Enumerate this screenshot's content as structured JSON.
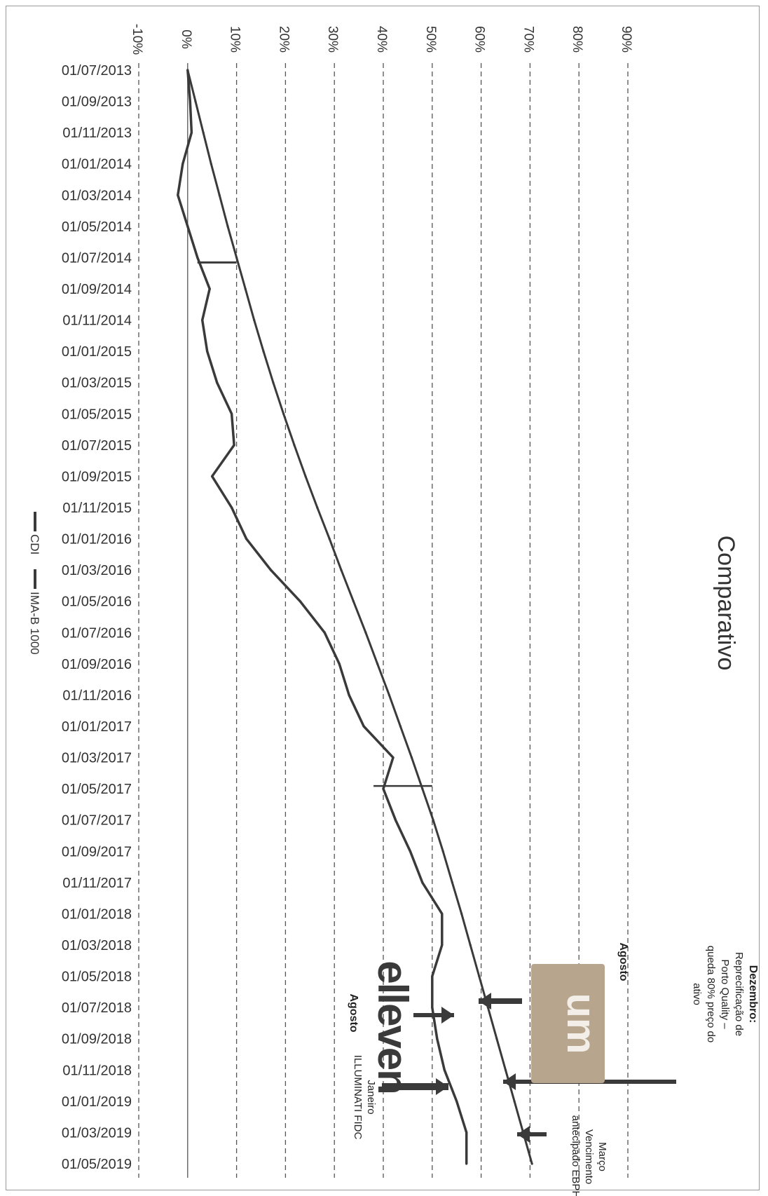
{
  "chart_data": {
    "type": "line",
    "title": "Comparativo",
    "orientation": "rotated-90-clockwise",
    "y_axis": {
      "ticks": [
        "-10%",
        "0%",
        "10%",
        "20%",
        "30%",
        "40%",
        "50%",
        "60%",
        "70%",
        "80%",
        "90%"
      ],
      "tick_values": [
        -10,
        0,
        10,
        20,
        30,
        40,
        50,
        60,
        70,
        80,
        90
      ],
      "ylim": [
        -10,
        90
      ],
      "grid": true
    },
    "x_axis": {
      "ticks": [
        "01/07/2013",
        "01/09/2013",
        "01/11/2013",
        "01/01/2014",
        "01/03/2014",
        "01/05/2014",
        "01/07/2014",
        "01/09/2014",
        "01/11/2014",
        "01/01/2015",
        "01/03/2015",
        "01/05/2015",
        "01/07/2015",
        "01/09/2015",
        "01/11/2015",
        "01/01/2016",
        "01/03/2016",
        "01/05/2016",
        "01/07/2016",
        "01/09/2016",
        "01/11/2016",
        "01/01/2017",
        "01/03/2017",
        "01/05/2017",
        "01/07/2017",
        "01/09/2017",
        "01/11/2017",
        "01/01/2018",
        "01/03/2018",
        "01/05/2018",
        "01/07/2018",
        "01/09/2018",
        "01/11/2018",
        "01/01/2019",
        "01/03/2019",
        "01/05/2019"
      ]
    },
    "legend": {
      "position": "bottom",
      "items": [
        "CDI",
        "IMA-B 1000"
      ]
    },
    "series": [
      {
        "name": "CDI",
        "x": [
          "01/07/2013",
          "01/09/2013",
          "01/11/2013",
          "01/01/2014",
          "01/03/2014",
          "01/05/2014",
          "01/07/2014",
          "01/09/2014",
          "01/11/2014",
          "01/01/2015",
          "01/03/2015",
          "01/05/2015",
          "01/07/2015",
          "01/09/2015",
          "01/11/2015",
          "01/01/2016",
          "01/03/2016",
          "01/05/2016",
          "01/07/2016",
          "01/09/2016",
          "01/11/2016",
          "01/01/2017",
          "01/03/2017",
          "01/05/2017",
          "01/07/2017",
          "01/09/2017",
          "01/11/2017",
          "01/01/2018",
          "01/03/2018",
          "01/05/2018",
          "01/07/2018",
          "01/09/2018",
          "01/11/2018",
          "01/01/2019",
          "01/03/2019",
          "01/05/2019"
        ],
        "values": [
          0,
          1.6,
          3.2,
          4.8,
          6.5,
          8.2,
          10.0,
          11.8,
          13.6,
          15.5,
          17.5,
          19.6,
          21.8,
          24.1,
          26.5,
          29.0,
          31.4,
          33.9,
          36.4,
          38.8,
          41.2,
          43.5,
          45.8,
          48.0,
          50.2,
          52.2,
          54.1,
          56.0,
          57.8,
          59.6,
          61.4,
          63.2,
          65.0,
          66.8,
          68.6,
          70.4
        ]
      },
      {
        "name": "IMA-B 1000",
        "x": [
          "01/07/2013",
          "01/09/2013",
          "01/11/2013",
          "01/01/2014",
          "01/03/2014",
          "01/05/2014",
          "01/07/2014",
          "01/09/2014",
          "01/11/2014",
          "01/01/2015",
          "01/03/2015",
          "01/05/2015",
          "01/07/2015",
          "01/09/2015",
          "01/11/2015",
          "01/01/2016",
          "01/03/2016",
          "01/05/2016",
          "01/07/2016",
          "01/09/2016",
          "01/11/2016",
          "01/01/2017",
          "01/03/2017",
          "01/05/2017",
          "01/07/2017",
          "01/09/2017",
          "01/11/2017",
          "01/01/2018",
          "01/03/2018",
          "01/05/2018",
          "01/07/2018",
          "01/09/2018",
          "01/11/2018",
          "01/01/2019",
          "01/03/2019",
          "01/05/2019"
        ],
        "values": [
          0,
          0.5,
          0.8,
          -1.0,
          -2.0,
          0.0,
          2.0,
          4.5,
          3.0,
          4.0,
          6.0,
          9.0,
          9.5,
          5.0,
          9.0,
          12.0,
          17.0,
          23.0,
          28.0,
          31.0,
          33.0,
          36.0,
          42.0,
          40.0,
          42.5,
          45.5,
          48.0,
          52.0,
          52.0,
          50.0,
          50.0,
          51.0,
          52.5,
          55.0,
          57.0,
          57.0
        ]
      }
    ],
    "annotations": [
      {
        "lines": [
          "Dezembro:",
          "Reprecificação de",
          "Porto Quality –",
          "queda 80% preço do",
          "ativo"
        ]
      },
      {
        "lines": [
          "Agosto"
        ]
      },
      {
        "lines": [
          "Março",
          "Vencimento",
          "antecipado EBPH"
        ]
      },
      {
        "lines": [
          "Agosto"
        ]
      },
      {
        "lines": [
          "Janeiro",
          "ILLUMINATI FIDC"
        ]
      }
    ],
    "logos": {
      "logo1": "um",
      "logo2": "elleven"
    }
  },
  "colors": {
    "series": "#3a3a3a",
    "grid": "#555555",
    "arrow": "#3a3a3a",
    "logo_bg": "#b8a58d"
  }
}
